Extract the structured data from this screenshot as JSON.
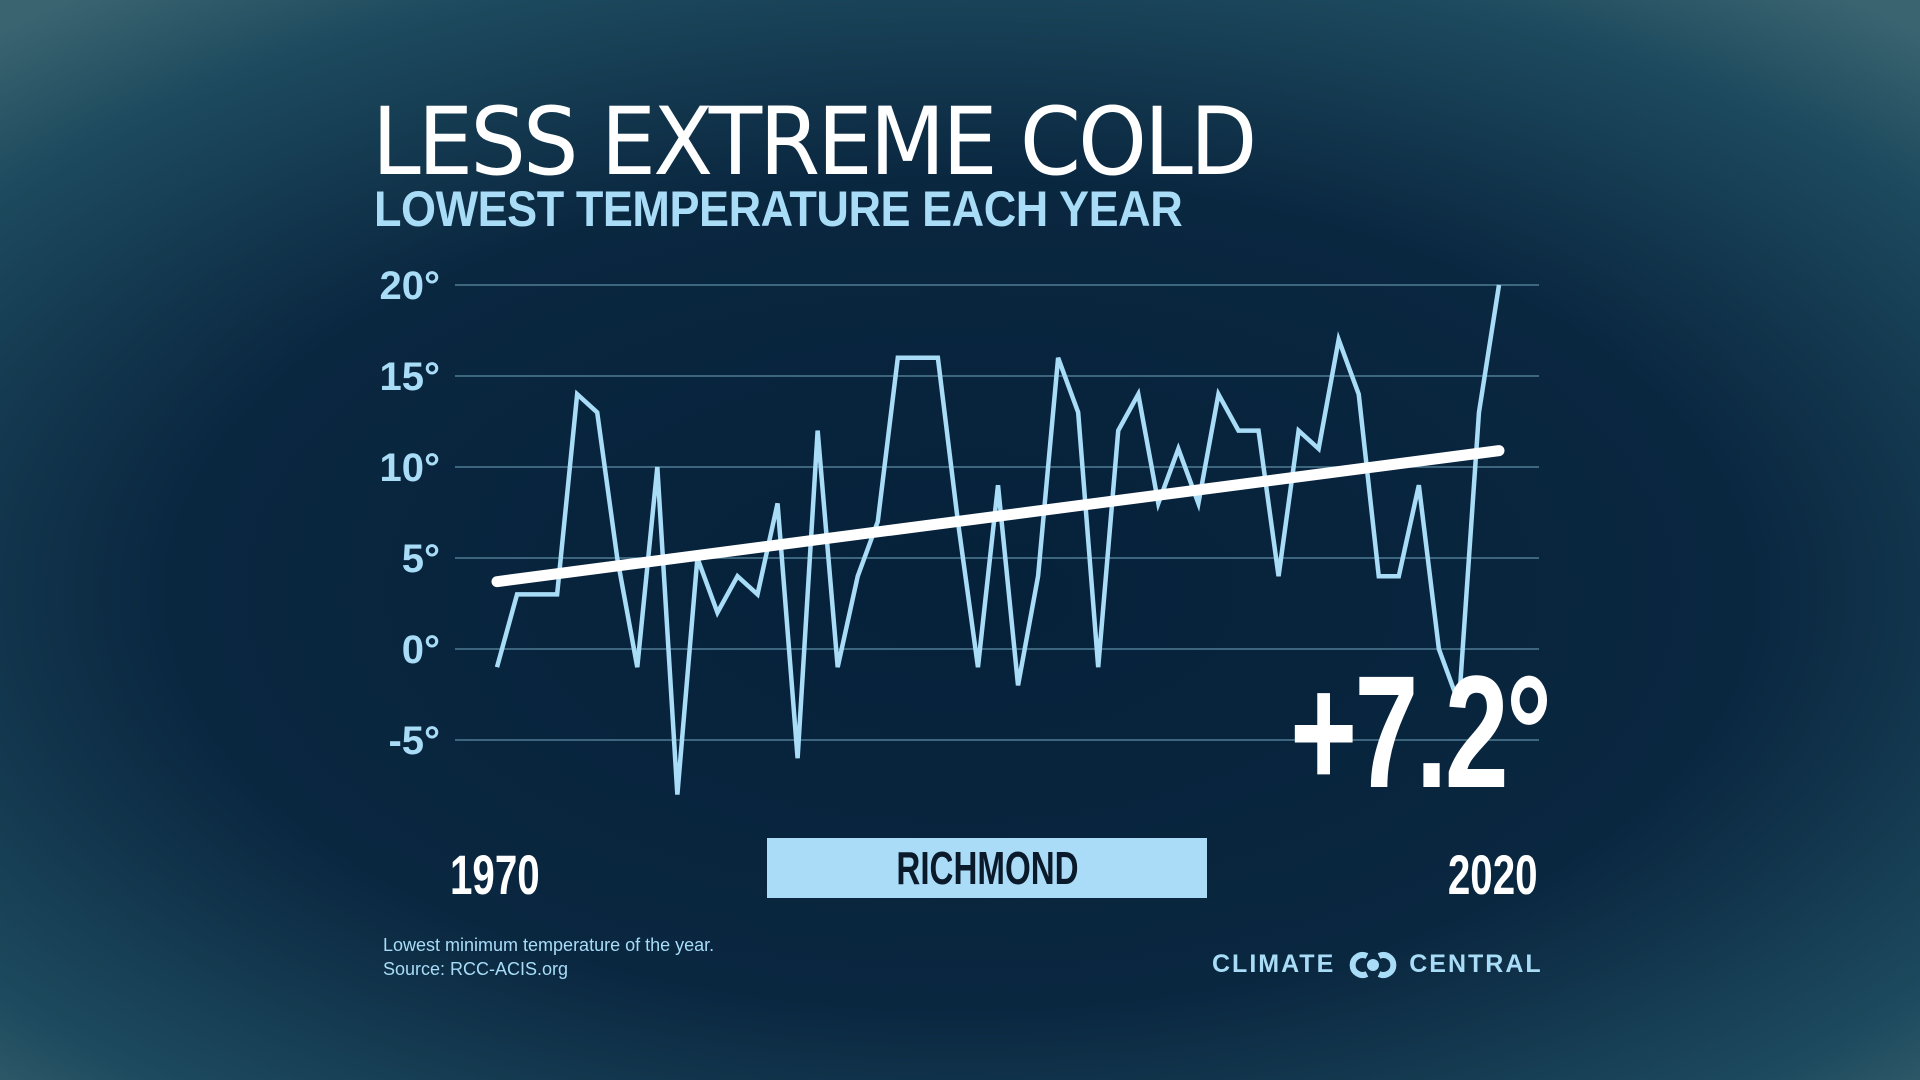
{
  "header": {
    "title": "LESS EXTREME COLD",
    "subtitle": "LOWEST TEMPERATURE EACH YEAR"
  },
  "chart_data": {
    "type": "line",
    "title": "LESS EXTREME COLD",
    "subtitle": "LOWEST TEMPERATURE EACH YEAR",
    "xlabel": "",
    "ylabel": "",
    "x_start_label": "1970",
    "x_end_label": "2020",
    "ylim": [
      -5,
      20
    ],
    "yticks": [
      20,
      15,
      10,
      5,
      0,
      -5
    ],
    "ytick_labels": [
      "20°",
      "15°",
      "10°",
      "5°",
      "0°",
      "-5°"
    ],
    "grid": true,
    "x": [
      1970,
      1971,
      1972,
      1973,
      1974,
      1975,
      1976,
      1977,
      1978,
      1979,
      1980,
      1981,
      1982,
      1983,
      1984,
      1985,
      1986,
      1987,
      1988,
      1989,
      1990,
      1991,
      1992,
      1993,
      1994,
      1995,
      1996,
      1997,
      1998,
      1999,
      2000,
      2001,
      2002,
      2003,
      2004,
      2005,
      2006,
      2007,
      2008,
      2009,
      2010,
      2011,
      2012,
      2013,
      2014,
      2015,
      2016,
      2017,
      2018,
      2019,
      2020
    ],
    "series": [
      {
        "name": "Lowest temperature",
        "color": "#a8dcf7",
        "values": [
          -1,
          3,
          3,
          3,
          14,
          13,
          5,
          -1,
          10,
          -8,
          5,
          2,
          4,
          3,
          8,
          -6,
          12,
          -1,
          4,
          7,
          16,
          16,
          16,
          7,
          -1,
          9,
          -2,
          4,
          16,
          13,
          -1,
          12,
          14,
          8,
          11,
          8,
          14,
          12,
          12,
          4,
          12,
          11,
          17,
          14,
          4,
          4,
          9,
          0,
          -3,
          13,
          20
        ]
      },
      {
        "name": "Trend",
        "color": "#ffffff",
        "values_start_end": [
          3.7,
          10.9
        ]
      }
    ],
    "annotation": "+7.2°",
    "location": "RICHMOND"
  },
  "footer": {
    "note_line1": "Lowest minimum temperature of the year.",
    "note_line2": "Source: RCC-ACIS.org",
    "logo_left": "CLIMATE",
    "logo_right": "CENTRAL"
  },
  "colors": {
    "accent": "#a8dcf7",
    "background": "#0a2740"
  }
}
